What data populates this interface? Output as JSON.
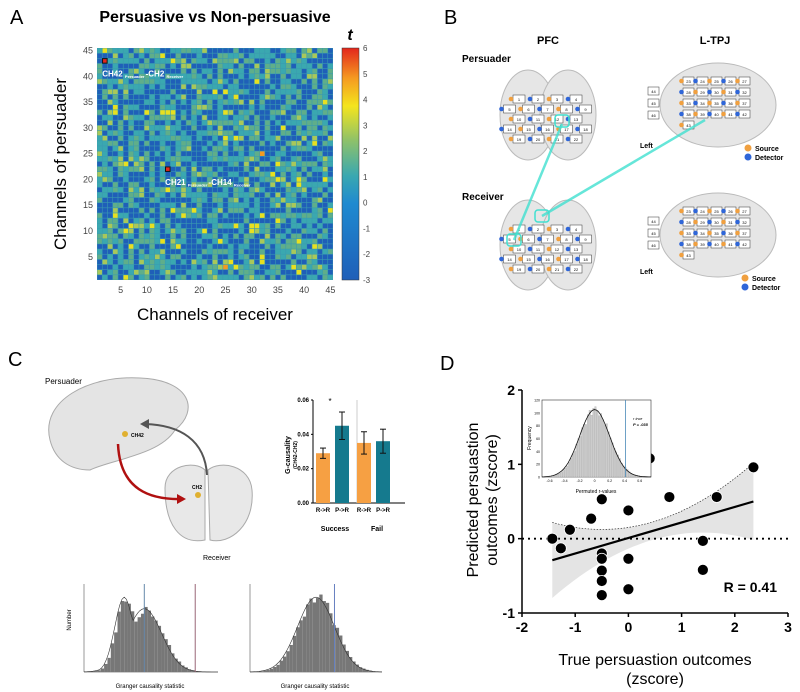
{
  "panels": {
    "a": "A",
    "b": "B",
    "c": "C",
    "d": "D"
  },
  "chart_data": [
    {
      "type": "heatmap",
      "title": "Persuasive vs Non-persuasive",
      "xlabel": "Channels of receiver",
      "ylabel": "Channels of persuader",
      "xticks": [
        "5",
        "10",
        "15",
        "20",
        "25",
        "30",
        "35",
        "40",
        "45"
      ],
      "yticks": [
        "5",
        "10",
        "15",
        "20",
        "25",
        "30",
        "35",
        "40",
        "45"
      ],
      "colorbar": {
        "label": "t",
        "ticks": [
          "6",
          "5",
          "4",
          "3",
          "2",
          "1",
          "0",
          "-1",
          "-2",
          "-3"
        ],
        "range": [
          -3,
          6
        ]
      },
      "highlights": [
        {
          "receiver": 2,
          "persuader": 43,
          "t": 6,
          "label": "CH42",
          "sub1": "Persuader",
          "label2": "-CH2",
          "sub2": "Receiver"
        },
        {
          "receiver": 14,
          "persuader": 22,
          "t": 6,
          "label": "CH21",
          "sub1": "Persuader",
          "label2": "-CH14",
          "sub2": "Receiver"
        }
      ],
      "notable": [
        {
          "receiver": 32,
          "persuader": 25,
          "t": 4.5
        },
        {
          "receiver": 25,
          "persuader": 3,
          "t": 4.5
        },
        {
          "receiver": 14,
          "persuader": 18,
          "t": 4.3
        }
      ]
    },
    {
      "type": "bar",
      "ylabel": "G-causality",
      "ylabel2": "(CH42-CH2)",
      "ylim": [
        0,
        0.06
      ],
      "yticks": [
        "0.00",
        "0.02",
        "0.04",
        "0.06"
      ],
      "groups": [
        "Success",
        "Fail"
      ],
      "categories": [
        "R->R",
        "P->R",
        "R->R",
        "P->R"
      ],
      "values": [
        0.029,
        0.045,
        0.035,
        0.036
      ],
      "errors": [
        0.003,
        0.008,
        0.0065,
        0.007
      ],
      "colors": [
        "#f6a043",
        "#157a8e",
        "#f6a043",
        "#157a8e"
      ],
      "significance": "*"
    },
    {
      "type": "histogram",
      "xlabel": "Granger causality statistic",
      "ylabel": "Number"
    },
    {
      "type": "histogram",
      "xlabel": "Granger causality statistic"
    },
    {
      "type": "scatter",
      "xlabel": "True persuastion outcomes",
      "xlabel2": "(zscore)",
      "ylabel": "Predicted persuastion",
      "ylabel2": "outcomes (zscore)",
      "xlim": [
        -2,
        3
      ],
      "ylim": [
        -1,
        2
      ],
      "xticks": [
        "-2",
        "-1",
        "0",
        "1",
        "2",
        "3"
      ],
      "yticks": [
        "-1",
        "0",
        "1",
        "2"
      ],
      "points": [
        [
          -1.43,
          0
        ],
        [
          -1.27,
          -0.13
        ],
        [
          -1.1,
          0.12
        ],
        [
          -0.7,
          0.27
        ],
        [
          -0.5,
          0.53
        ],
        [
          -0.5,
          -0.2
        ],
        [
          -0.5,
          -0.27
        ],
        [
          -0.5,
          -0.43
        ],
        [
          -0.5,
          -0.57
        ],
        [
          -0.5,
          -0.76
        ],
        [
          0,
          0.38
        ],
        [
          0,
          -0.27
        ],
        [
          0,
          -0.68
        ],
        [
          0.4,
          1.08
        ],
        [
          0.77,
          0.56
        ],
        [
          1.4,
          -0.03
        ],
        [
          1.4,
          -0.42
        ],
        [
          1.66,
          0.56
        ],
        [
          2.35,
          0.96
        ]
      ],
      "fit": [
        [
          -1.43,
          -0.29
        ],
        [
          2.35,
          0.5
        ]
      ],
      "annotation": "R = 0.41",
      "inset": {
        "type": "histogram",
        "xlabel": "Permuted r-values",
        "ylabel": "Frequency",
        "xticks": [
          "-0.6",
          "-0.4",
          "-0.2",
          "0",
          "0.2",
          "0.4",
          "0.6"
        ],
        "yticks": [
          "0",
          "20",
          "40",
          "60",
          "80",
          "100",
          "120"
        ],
        "true_r": 0.41,
        "note1": "r true",
        "note2": "P = .035"
      }
    }
  ],
  "brain_b": {
    "pfc": "PFC",
    "tpj": "L-TPJ",
    "persuader": "Persuader",
    "receiver": "Receiver",
    "left": "Left",
    "source": "Source",
    "detector": "Detector",
    "pfc_channels": [
      "1",
      "2",
      "3",
      "4",
      "5",
      "6",
      "7",
      "8",
      "9",
      "10",
      "11",
      "12",
      "13",
      "14",
      "15",
      "16",
      "17",
      "18",
      "19",
      "20",
      "21",
      "22"
    ],
    "tpj_channels": [
      "23",
      "24",
      "25",
      "26",
      "27",
      "28",
      "29",
      "30",
      "31",
      "32",
      "33",
      "34",
      "35",
      "36",
      "37",
      "38",
      "39",
      "40",
      "41",
      "42",
      "43",
      "44",
      "45",
      "46"
    ],
    "source_color": "#f0a040",
    "detector_color": "#2f66d8",
    "link_color": "#40e0d0"
  },
  "brain_c": {
    "persuader": "Persuader",
    "receiver": "Receiver",
    "ch42": "CH42",
    "ch2": "CH2"
  }
}
